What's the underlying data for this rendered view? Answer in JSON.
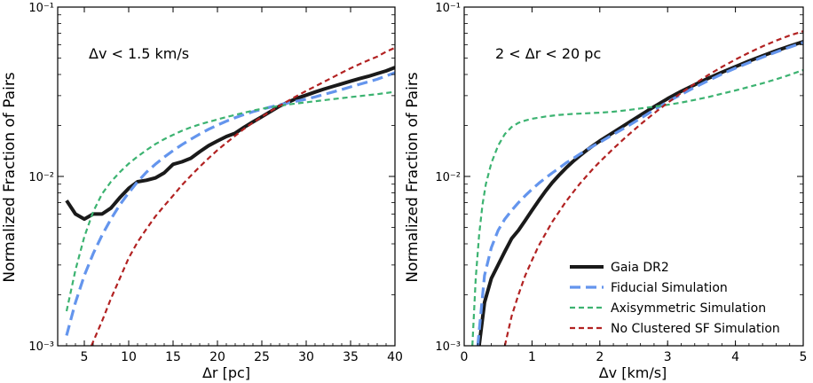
{
  "chart_data": [
    {
      "type": "line",
      "ylabel": "Normalized Fraction of Pairs",
      "xlabel": "Δr [pc]",
      "annotation": "Δv < 1.5 km/s",
      "xlim": [
        2,
        40
      ],
      "ylim": [
        0.001,
        0.1
      ],
      "yscale": "log",
      "x_ticks": [
        5,
        10,
        15,
        20,
        25,
        30,
        35,
        40
      ],
      "y_ticks": [
        0.001,
        0.01,
        0.1
      ],
      "y_tick_labels": [
        "10⁻³",
        "10⁻²",
        "10⁻¹"
      ],
      "series": [
        {
          "name": "Gaia DR2",
          "x": [
            3,
            4,
            5,
            6,
            7,
            8,
            9,
            10,
            11,
            12,
            13,
            14,
            15,
            16,
            17,
            18,
            19,
            20,
            21,
            22,
            23,
            24,
            25,
            26,
            27,
            28,
            29,
            30,
            31,
            32,
            33,
            34,
            35,
            36,
            37,
            38,
            39,
            40
          ],
          "values": [
            0.0072,
            0.006,
            0.0056,
            0.006,
            0.006,
            0.0065,
            0.0075,
            0.0085,
            0.0093,
            0.0095,
            0.0098,
            0.0105,
            0.0118,
            0.0122,
            0.0128,
            0.014,
            0.0152,
            0.0162,
            0.0172,
            0.018,
            0.0195,
            0.021,
            0.0225,
            0.0242,
            0.026,
            0.0275,
            0.029,
            0.0302,
            0.0315,
            0.0328,
            0.034,
            0.0352,
            0.0365,
            0.0378,
            0.039,
            0.0405,
            0.042,
            0.044
          ]
        },
        {
          "name": "Fiducial Simulation",
          "x": [
            3,
            4,
            5,
            6,
            7,
            8,
            9,
            10,
            11,
            12,
            13,
            14,
            15,
            16,
            17,
            18,
            19,
            20,
            21,
            22,
            23,
            24,
            25,
            26,
            27,
            28,
            29,
            30,
            31,
            32,
            33,
            34,
            35,
            36,
            37,
            38,
            39,
            40
          ],
          "values": [
            0.00115,
            0.0018,
            0.0026,
            0.0035,
            0.0045,
            0.0056,
            0.0068,
            0.008,
            0.0093,
            0.0106,
            0.0118,
            0.013,
            0.0142,
            0.0154,
            0.0166,
            0.0178,
            0.019,
            0.0201,
            0.0212,
            0.0222,
            0.0232,
            0.0241,
            0.0249,
            0.0257,
            0.0265,
            0.0272,
            0.0279,
            0.0286,
            0.0295,
            0.0305,
            0.0315,
            0.0326,
            0.0338,
            0.035,
            0.0362,
            0.0375,
            0.0392,
            0.041
          ]
        },
        {
          "name": "Axisymmetric Simulation",
          "x": [
            3,
            4,
            5,
            6,
            7,
            8,
            9,
            10,
            11,
            12,
            13,
            14,
            15,
            16,
            17,
            18,
            19,
            20,
            21,
            22,
            23,
            24,
            25,
            26,
            27,
            28,
            29,
            30,
            31,
            32,
            33,
            34,
            35,
            36,
            37,
            38,
            39,
            40
          ],
          "values": [
            0.0016,
            0.0028,
            0.0044,
            0.0062,
            0.0079,
            0.0093,
            0.0106,
            0.0119,
            0.0131,
            0.0143,
            0.0155,
            0.0166,
            0.0176,
            0.0186,
            0.0195,
            0.0203,
            0.021,
            0.0217,
            0.0224,
            0.0231,
            0.0238,
            0.0245,
            0.0251,
            0.0256,
            0.0261,
            0.0266,
            0.027,
            0.0274,
            0.0278,
            0.0282,
            0.0286,
            0.029,
            0.0294,
            0.0298,
            0.0302,
            0.0306,
            0.0311,
            0.0316
          ]
        },
        {
          "name": "No Clustered SF Simulation",
          "x": [
            5.8,
            7,
            8,
            9,
            10,
            11,
            12,
            13,
            14,
            15,
            16,
            17,
            18,
            19,
            20,
            21,
            22,
            23,
            24,
            25,
            26,
            27,
            28,
            29,
            30,
            31,
            32,
            33,
            34,
            35,
            36,
            37,
            38,
            39,
            40
          ],
          "values": [
            0.001,
            0.0014,
            0.0019,
            0.0025,
            0.0033,
            0.0041,
            0.0049,
            0.0058,
            0.0067,
            0.0077,
            0.0089,
            0.0101,
            0.0114,
            0.0128,
            0.0143,
            0.0158,
            0.0174,
            0.0191,
            0.0208,
            0.0225,
            0.0243,
            0.0261,
            0.028,
            0.03,
            0.032,
            0.034,
            0.0362,
            0.0385,
            0.041,
            0.0435,
            0.046,
            0.0485,
            0.051,
            0.0545,
            0.0575
          ]
        }
      ]
    },
    {
      "type": "line",
      "ylabel": "Normalized Fraction of Pairs",
      "xlabel": "Δv [km/s]",
      "annotation": "2 < Δr < 20 pc",
      "xlim": [
        0,
        5
      ],
      "ylim": [
        0.001,
        0.1
      ],
      "yscale": "log",
      "x_ticks": [
        0,
        1,
        2,
        3,
        4,
        5
      ],
      "y_ticks": [
        0.001,
        0.01,
        0.1
      ],
      "y_tick_labels": [
        "10⁻³",
        "10⁻²",
        "10⁻¹"
      ],
      "legend_position": "lower-right",
      "series": [
        {
          "name": "Gaia DR2",
          "x": [
            0.22,
            0.3,
            0.4,
            0.5,
            0.6,
            0.7,
            0.8,
            0.9,
            1.0,
            1.1,
            1.2,
            1.3,
            1.4,
            1.5,
            1.6,
            1.7,
            1.8,
            1.9,
            2.0,
            2.2,
            2.4,
            2.6,
            2.8,
            3.0,
            3.2,
            3.4,
            3.6,
            3.8,
            4.0,
            4.2,
            4.4,
            4.6,
            4.8,
            5.0
          ],
          "values": [
            0.001,
            0.0018,
            0.0025,
            0.003,
            0.0036,
            0.0043,
            0.0048,
            0.0055,
            0.0063,
            0.0072,
            0.0082,
            0.0092,
            0.0102,
            0.0112,
            0.0122,
            0.0132,
            0.0142,
            0.0152,
            0.0162,
            0.0182,
            0.0205,
            0.023,
            0.0258,
            0.0288,
            0.0318,
            0.0348,
            0.038,
            0.0412,
            0.0445,
            0.048,
            0.0515,
            0.0552,
            0.0588,
            0.0625
          ]
        },
        {
          "name": "Fiducial Simulation",
          "x": [
            0.2,
            0.3,
            0.4,
            0.5,
            0.6,
            0.7,
            0.8,
            0.9,
            1.0,
            1.1,
            1.2,
            1.3,
            1.4,
            1.5,
            1.6,
            1.7,
            1.8,
            1.9,
            2.0,
            2.2,
            2.4,
            2.6,
            2.8,
            3.0,
            3.2,
            3.4,
            3.6,
            3.8,
            4.0,
            4.2,
            4.4,
            4.6,
            4.8,
            5.0
          ],
          "values": [
            0.001,
            0.0026,
            0.0038,
            0.0048,
            0.0056,
            0.0063,
            0.007,
            0.0077,
            0.0084,
            0.0091,
            0.0098,
            0.0105,
            0.0112,
            0.012,
            0.0127,
            0.0135,
            0.0143,
            0.0151,
            0.0159,
            0.0177,
            0.0197,
            0.022,
            0.0247,
            0.0276,
            0.0305,
            0.0336,
            0.0368,
            0.0402,
            0.0436,
            0.047,
            0.0506,
            0.0543,
            0.058,
            0.0618
          ]
        },
        {
          "name": "Axisymmetric Simulation",
          "x": [
            0.12,
            0.17,
            0.22,
            0.27,
            0.32,
            0.4,
            0.5,
            0.6,
            0.7,
            0.8,
            0.9,
            1.0,
            1.2,
            1.4,
            1.6,
            1.8,
            2.0,
            2.2,
            2.4,
            2.6,
            2.8,
            3.0,
            3.2,
            3.4,
            3.6,
            3.8,
            4.0,
            4.2,
            4.4,
            4.6,
            4.8,
            5.0
          ],
          "values": [
            0.001,
            0.0025,
            0.0045,
            0.0068,
            0.009,
            0.012,
            0.0152,
            0.0178,
            0.0196,
            0.0207,
            0.0214,
            0.0219,
            0.0226,
            0.0231,
            0.0234,
            0.0236,
            0.0238,
            0.0241,
            0.0246,
            0.0252,
            0.0258,
            0.0265,
            0.0273,
            0.0283,
            0.0294,
            0.0308,
            0.0322,
            0.0338,
            0.0355,
            0.0375,
            0.0398,
            0.0425
          ]
        },
        {
          "name": "No Clustered SF Simulation",
          "x": [
            0.6,
            0.7,
            0.8,
            0.9,
            1.0,
            1.1,
            1.2,
            1.3,
            1.4,
            1.5,
            1.6,
            1.7,
            1.8,
            1.9,
            2.0,
            2.2,
            2.4,
            2.6,
            2.8,
            3.0,
            3.2,
            3.4,
            3.6,
            3.8,
            4.0,
            4.2,
            4.4,
            4.6,
            4.8,
            5.0
          ],
          "values": [
            0.001,
            0.0015,
            0.002,
            0.0026,
            0.0032,
            0.0039,
            0.0046,
            0.0054,
            0.0062,
            0.0071,
            0.008,
            0.009,
            0.01,
            0.0111,
            0.0122,
            0.0146,
            0.0173,
            0.0203,
            0.0236,
            0.0272,
            0.0311,
            0.0353,
            0.0397,
            0.0443,
            0.049,
            0.0538,
            0.0586,
            0.0634,
            0.068,
            0.072
          ]
        }
      ]
    }
  ],
  "styles": {
    "colors": {
      "Gaia DR2": "#1a1a1a",
      "Fiducial Simulation": "#6495ed",
      "Axisymmetric Simulation": "#3cb371",
      "No Clustered SF Simulation": "#b22222"
    }
  }
}
